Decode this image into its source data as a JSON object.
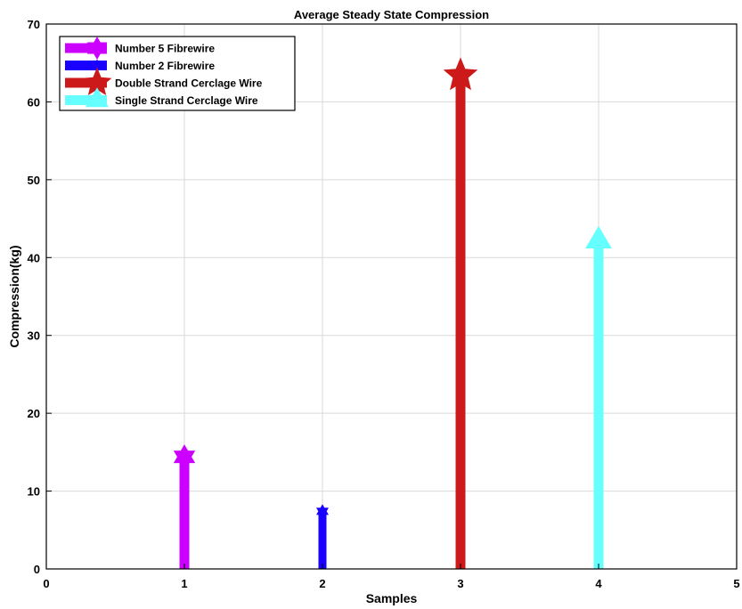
{
  "chart_data": {
    "type": "stem",
    "title": "Average Steady State Compression",
    "xlabel": "Samples",
    "ylabel": "Compression(kg)",
    "xlim": [
      0,
      5
    ],
    "ylim": [
      0,
      70
    ],
    "xticks": [
      "0",
      "1",
      "2",
      "3",
      "4",
      "5"
    ],
    "yticks": [
      "0",
      "10",
      "20",
      "30",
      "40",
      "50",
      "60",
      "70"
    ],
    "grid": true,
    "legend_position": "top-left",
    "series": [
      {
        "name": "Number 5 Fibrewire",
        "x": 1,
        "value": 14.4,
        "color": "#cc00ff",
        "marker": "hexagram"
      },
      {
        "name": "Number 2 Fibrewire",
        "x": 2,
        "value": 7.4,
        "color": "#1a00ff",
        "marker": "hexagram"
      },
      {
        "name": "Double Strand Cerclage Wire",
        "x": 3,
        "value": 63.4,
        "color": "#cc1a1a",
        "marker": "pentagram"
      },
      {
        "name": "Single Strand Cerclage Wire",
        "x": 4,
        "value": 42.2,
        "color": "#66ffff",
        "marker": "triangle"
      }
    ]
  }
}
